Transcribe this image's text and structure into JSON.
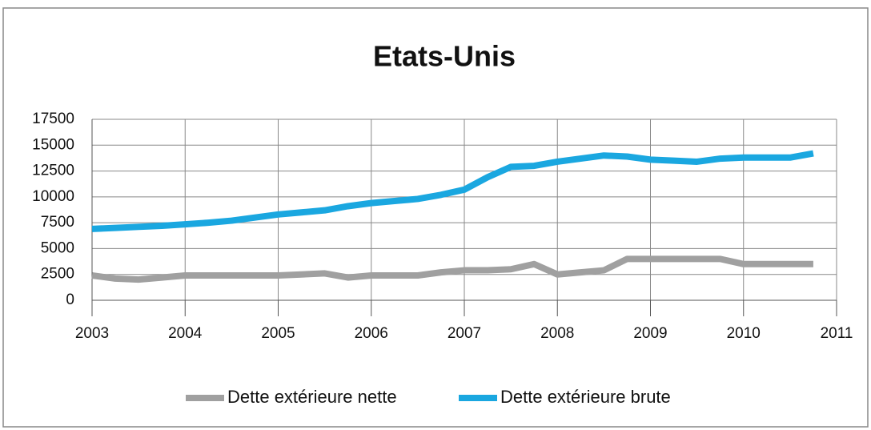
{
  "chart_data": {
    "type": "line",
    "title": "Etats-Unis",
    "x": [
      2003,
      2003.25,
      2003.5,
      2003.75,
      2004,
      2004.25,
      2004.5,
      2004.75,
      2005,
      2005.25,
      2005.5,
      2005.75,
      2006,
      2006.25,
      2006.5,
      2006.75,
      2007,
      2007.25,
      2007.5,
      2007.75,
      2008,
      2008.25,
      2008.5,
      2008.75,
      2009,
      2009.25,
      2009.5,
      2009.75,
      2010,
      2010.25,
      2010.5,
      2010.75
    ],
    "series": [
      {
        "name": "Dette extérieure nette",
        "color": "#a0a0a0",
        "values": [
          2400,
          2100,
          2000,
          2200,
          2400,
          2400,
          2400,
          2400,
          2400,
          2500,
          2600,
          2200,
          2400,
          2400,
          2400,
          2700,
          2900,
          2900,
          3000,
          3500,
          2500,
          2700,
          2900,
          4000,
          4000,
          4000,
          4000,
          4000,
          3500,
          3500,
          3500,
          3500
        ]
      },
      {
        "name": "Dette extérieure brute",
        "color": "#1aa7e0",
        "values": [
          6900,
          7000,
          7100,
          7200,
          7350,
          7500,
          7700,
          8000,
          8300,
          8500,
          8700,
          9100,
          9400,
          9600,
          9800,
          10200,
          10700,
          11900,
          12900,
          13000,
          13400,
          13700,
          14000,
          13900,
          13600,
          13500,
          13400,
          13700,
          13800,
          13800,
          13800,
          14200
        ]
      }
    ],
    "xlim": [
      2003,
      2011
    ],
    "xticks": [
      2003,
      2004,
      2005,
      2006,
      2007,
      2008,
      2009,
      2010,
      2011
    ],
    "ylim": [
      0,
      17500
    ],
    "yticks": [
      0,
      2500,
      5000,
      7500,
      10000,
      12500,
      15000,
      17500
    ],
    "grid": true,
    "legend": "bottom"
  }
}
